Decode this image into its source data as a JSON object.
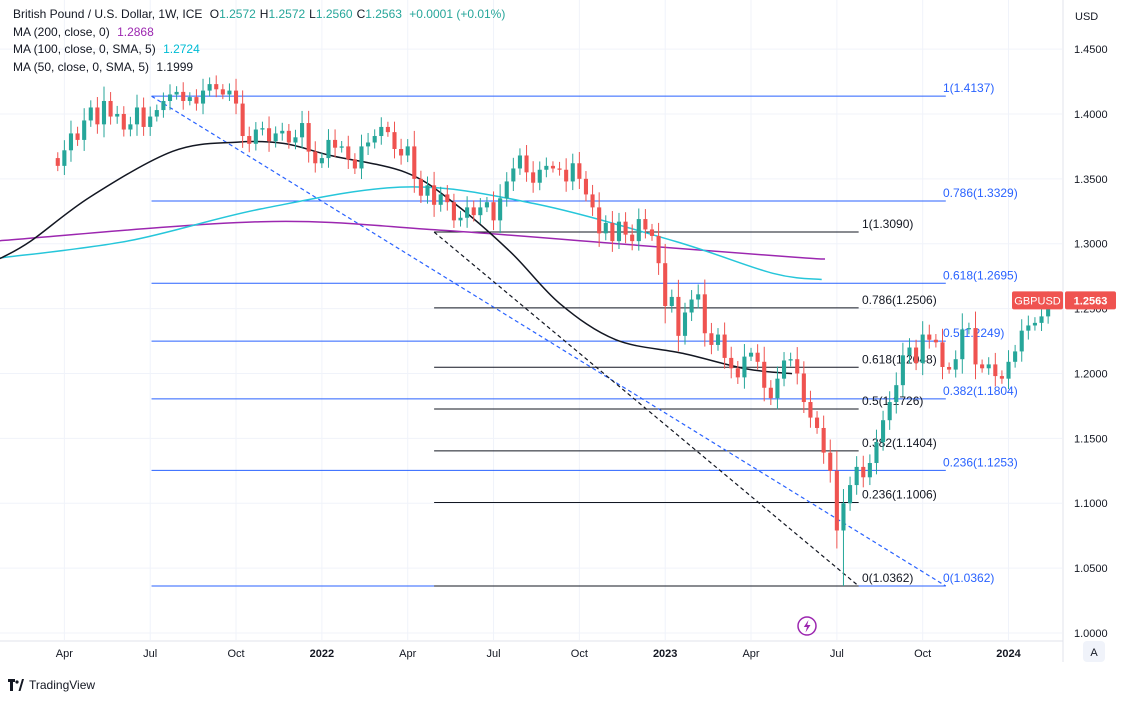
{
  "header": {
    "title": "British Pound / U.S. Dollar, 1W, ICE",
    "ohlc": [
      {
        "label": "O",
        "value": "1.2572"
      },
      {
        "label": "H",
        "value": "1.2572"
      },
      {
        "label": "L",
        "value": "1.2560"
      },
      {
        "label": "C",
        "value": "1.2563"
      }
    ],
    "change": "+0.0001 (+0.01%)"
  },
  "indicators": [
    {
      "label": "MA (200, close, 0)",
      "value": "1.2868",
      "color": "#9c27b0"
    },
    {
      "label": "MA (100, close, 0, SMA, 5)",
      "value": "1.2724",
      "color": "#26c6da"
    },
    {
      "label": "MA (50, close, 0, SMA, 5)",
      "value": "1.1999",
      "color": "#131722"
    }
  ],
  "colors": {
    "up": "#26a69a",
    "down": "#ef5350",
    "blue": "#2962ff",
    "black": "#131722",
    "axis_text": "#131722"
  },
  "price_badge": {
    "symbol": "GBPUSD",
    "price": "1.2563"
  },
  "footer": {
    "brand": "TradingView",
    "icon": "tradingview-logo-icon"
  },
  "axis": {
    "currency": "USD",
    "scale_button": "A",
    "lightning_icon": "lightning-icon"
  },
  "chart_data": {
    "type": "candlestick",
    "title": "British Pound / U.S. Dollar, 1W, ICE",
    "currency": "USD",
    "ylim": [
      1.0,
      1.4627
    ],
    "y_ticks": [
      "1.4500",
      "1.4000",
      "1.3500",
      "1.3000",
      "1.2500",
      "1.2000",
      "1.1500",
      "1.1000",
      "1.0500",
      "1.0000"
    ],
    "x_ticks": [
      {
        "label": "Apr",
        "bold": false,
        "week": 1
      },
      {
        "label": "Jul",
        "bold": false,
        "week": 14
      },
      {
        "label": "Oct",
        "bold": false,
        "week": 27
      },
      {
        "label": "2022",
        "bold": true,
        "week": 40
      },
      {
        "label": "Apr",
        "bold": false,
        "week": 53
      },
      {
        "label": "Jul",
        "bold": false,
        "week": 66
      },
      {
        "label": "Oct",
        "bold": false,
        "week": 79
      },
      {
        "label": "2023",
        "bold": true,
        "week": 92
      },
      {
        "label": "Apr",
        "bold": false,
        "week": 105
      },
      {
        "label": "Jul",
        "bold": false,
        "week": 118
      },
      {
        "label": "Oct",
        "bold": false,
        "week": 131
      },
      {
        "label": "2024",
        "bold": true,
        "week": 144
      }
    ],
    "week_range": [
      -8.75,
      152.1
    ],
    "closes": [
      1.36,
      1.372,
      1.385,
      1.38,
      1.395,
      1.405,
      1.392,
      1.41,
      1.398,
      1.4,
      1.388,
      1.392,
      1.405,
      1.39,
      1.398,
      1.403,
      1.41,
      1.415,
      1.417,
      1.41,
      1.413,
      1.408,
      1.418,
      1.423,
      1.419,
      1.415,
      1.418,
      1.408,
      1.383,
      1.377,
      1.388,
      1.389,
      1.379,
      1.385,
      1.387,
      1.378,
      1.382,
      1.393,
      1.371,
      1.362,
      1.366,
      1.38,
      1.374,
      1.375,
      1.365,
      1.358,
      1.375,
      1.378,
      1.383,
      1.39,
      1.386,
      1.373,
      1.368,
      1.375,
      1.35,
      1.337,
      1.345,
      1.33,
      1.338,
      1.332,
      1.318,
      1.32,
      1.328,
      1.322,
      1.328,
      1.332,
      1.318,
      1.335,
      1.348,
      1.358,
      1.368,
      1.355,
      1.347,
      1.357,
      1.36,
      1.358,
      1.357,
      1.348,
      1.362,
      1.35,
      1.338,
      1.328,
      1.308,
      1.316,
      1.302,
      1.317,
      1.307,
      1.302,
      1.319,
      1.311,
      1.306,
      1.285,
      1.252,
      1.259,
      1.229,
      1.247,
      1.257,
      1.261,
      1.231,
      1.222,
      1.23,
      1.212,
      1.204,
      1.197,
      1.213,
      1.216,
      1.209,
      1.189,
      1.181,
      1.196,
      1.21,
      1.211,
      1.2,
      1.178,
      1.166,
      1.158,
      1.139,
      1.125,
      1.079,
      1.1,
      1.114,
      1.128,
      1.12,
      1.131,
      1.147,
      1.164,
      1.178,
      1.191,
      1.214,
      1.22,
      1.208,
      1.23,
      1.226,
      1.224,
      1.205,
      1.203,
      1.211,
      1.234,
      1.235,
      1.207,
      1.204,
      1.207,
      1.198,
      1.196,
      1.209,
      1.217,
      1.233,
      1.237,
      1.239,
      1.244,
      1.257
    ],
    "ma200": [
      {
        "week": -8.75,
        "value": 1.3023
      },
      {
        "week": 30.8,
        "value": 1.317
      },
      {
        "week": 57.8,
        "value": 1.3105
      },
      {
        "week": 86.1,
        "value": 1.2995
      },
      {
        "week": 111.7,
        "value": 1.2895
      },
      {
        "week": 116.2,
        "value": 1.2882
      }
    ],
    "ma100": [
      {
        "week": -8.75,
        "value": 1.289
      },
      {
        "week": 10.7,
        "value": 1.3022
      },
      {
        "week": 30.8,
        "value": 1.3268
      },
      {
        "week": 52.7,
        "value": 1.3437
      },
      {
        "week": 72.1,
        "value": 1.331
      },
      {
        "week": 93.6,
        "value": 1.3017
      },
      {
        "week": 108.3,
        "value": 1.2772
      },
      {
        "week": 115.7,
        "value": 1.2724
      }
    ],
    "ma50": [
      {
        "week": -8.75,
        "value": 1.2885
      },
      {
        "week": -4.1,
        "value": 1.302
      },
      {
        "week": 4.9,
        "value": 1.336
      },
      {
        "week": 17.4,
        "value": 1.3712
      },
      {
        "week": 27.0,
        "value": 1.3782
      },
      {
        "week": 34.3,
        "value": 1.3772
      },
      {
        "week": 41.3,
        "value": 1.368
      },
      {
        "week": 52.7,
        "value": 1.355
      },
      {
        "week": 60.1,
        "value": 1.331
      },
      {
        "week": 68.6,
        "value": 1.2935
      },
      {
        "week": 76.0,
        "value": 1.254
      },
      {
        "week": 84.5,
        "value": 1.226
      },
      {
        "week": 94.7,
        "value": 1.2155
      },
      {
        "week": 104.3,
        "value": 1.2035
      },
      {
        "week": 111.2,
        "value": 1.1999
      }
    ],
    "fib_blue": {
      "from_week": 14.2,
      "to_week": 134.5,
      "levels": [
        {
          "ratio": "1",
          "label": "1(1.4137)",
          "value": 1.4137
        },
        {
          "ratio": "0.786",
          "label": "0.786(1.3329)",
          "value": 1.3329
        },
        {
          "ratio": "0.618",
          "label": "0.618(1.2695)",
          "value": 1.2695
        },
        {
          "ratio": "0.5",
          "label": "0.5(1.2249)",
          "value": 1.2249
        },
        {
          "ratio": "0.382",
          "label": "0.382(1.1804)",
          "value": 1.1804
        },
        {
          "ratio": "0.236",
          "label": "0.236(1.1253)",
          "value": 1.1253
        },
        {
          "ratio": "0",
          "label": "0(1.0362)",
          "value": 1.0362
        }
      ]
    },
    "fib_black": {
      "from_week": 57.0,
      "to_week": 121.3,
      "levels": [
        {
          "ratio": "1",
          "label": "1(1.3090)",
          "value": 1.309
        },
        {
          "ratio": "0.786",
          "label": "0.786(1.2506)",
          "value": 1.2506
        },
        {
          "ratio": "0.618",
          "label": "0.618(1.2048)",
          "value": 1.2048
        },
        {
          "ratio": "0.5",
          "label": "0.5(1.1726)",
          "value": 1.1726
        },
        {
          "ratio": "0.382",
          "label": "0.382(1.1404)",
          "value": 1.1404
        },
        {
          "ratio": "0.236",
          "label": "0.236(1.1006)",
          "value": 1.1006
        },
        {
          "ratio": "0",
          "label": "0(1.0362)",
          "value": 1.0362
        }
      ]
    },
    "trend_blue": {
      "from": {
        "week": 14.2,
        "value": 1.4137
      },
      "to": {
        "week": 134.5,
        "value": 1.0362
      }
    },
    "trend_black": {
      "from": {
        "week": 57.0,
        "value": 1.309
      },
      "to": {
        "week": 121.3,
        "value": 1.0362
      }
    },
    "last_price": 1.2563
  }
}
